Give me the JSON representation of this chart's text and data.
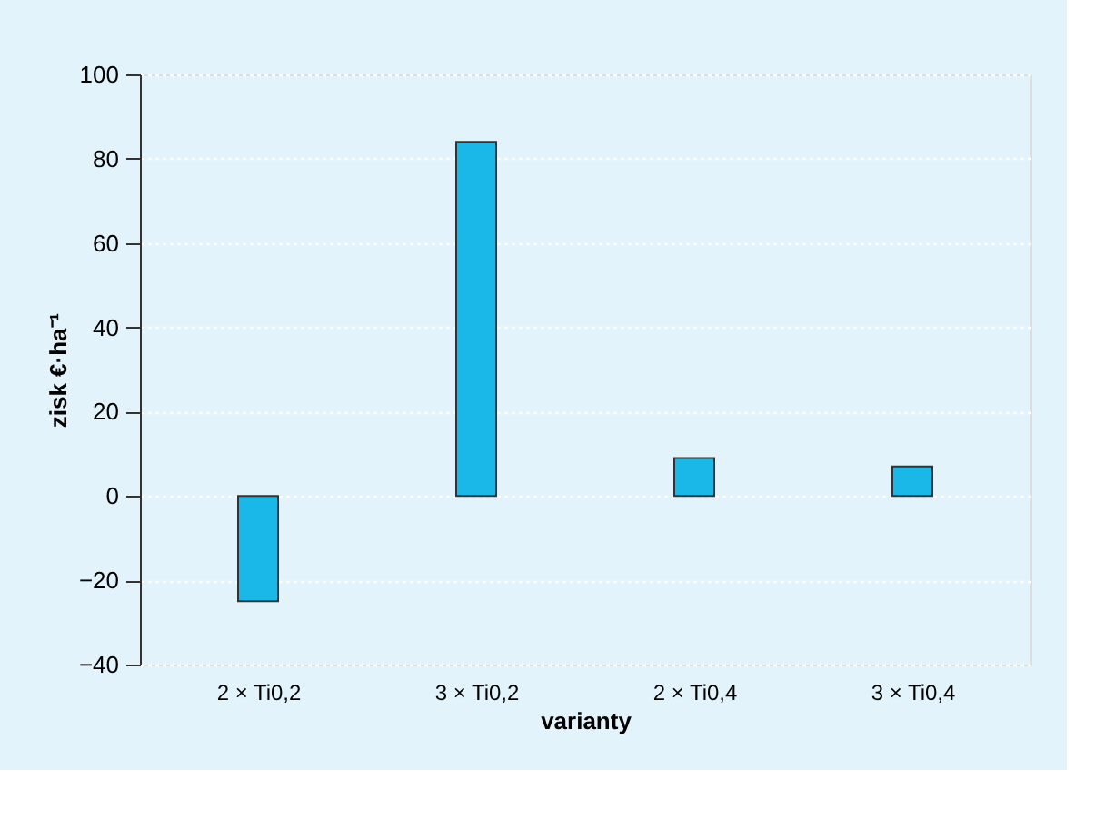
{
  "chart_data": {
    "type": "bar",
    "xlabel": "varianty",
    "ylabel": "zisk €·ha⁻¹",
    "categories": [
      "2 × Ti0,2",
      "3 × Ti0,2",
      "2 × Ti0,4",
      "3 × Ti0,4"
    ],
    "values": [
      -25,
      84,
      9,
      7
    ],
    "color": "#19b8e8",
    "ylim": [
      -40,
      100
    ],
    "yticks": [
      -40,
      -20,
      0,
      20,
      40,
      60,
      80,
      100
    ],
    "grid": "y"
  }
}
